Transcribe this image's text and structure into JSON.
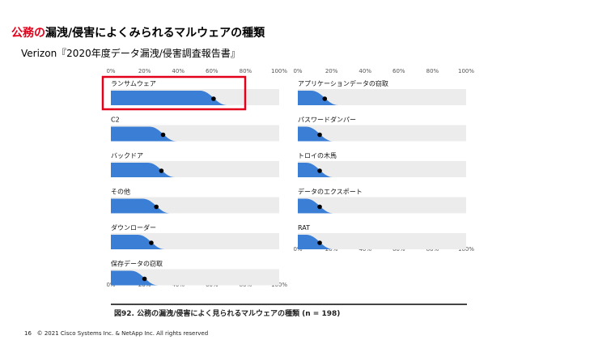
{
  "header": {
    "title_highlight": "公務の",
    "title_rest": "漏洩/侵害によくみられるマルウェアの種類",
    "subtitle": "Verizon『2020年度データ漏洩/侵害調査報告書』"
  },
  "footer": {
    "page_number": "16",
    "copyright": "© 2021 Cisco Systems Inc. & NetApp Inc. All rights reserved"
  },
  "chart_data": {
    "type": "area",
    "caption": "図92. 公務の漏洩/侵害によく見られるマルウェアの種類 (n = 198)",
    "x_tick_labels": [
      "0%",
      "20%",
      "40%",
      "60%",
      "80%",
      "100%"
    ],
    "xlim": [
      0,
      100
    ],
    "highlighted_panel": "ランサムウェア",
    "highlight_color": "#e2001a",
    "area_color": "#3a7fd5",
    "track_color": "#ececec",
    "panels": [
      {
        "label": "ランサムウェア",
        "value": 61,
        "column": "left"
      },
      {
        "label": "C2",
        "value": 31,
        "column": "left"
      },
      {
        "label": "バックドア",
        "value": 30,
        "column": "left"
      },
      {
        "label": "その他",
        "value": 27,
        "column": "left"
      },
      {
        "label": "ダウンローダー",
        "value": 24,
        "column": "left"
      },
      {
        "label": "保存データの窃取",
        "value": 20,
        "column": "left"
      },
      {
        "label": "アプリケーションデータの窃取",
        "value": 16,
        "column": "right"
      },
      {
        "label": "パスワードダンパー",
        "value": 13,
        "column": "right"
      },
      {
        "label": "トロイの木馬",
        "value": 13,
        "column": "right"
      },
      {
        "label": "データのエクスポート",
        "value": 13,
        "column": "right"
      },
      {
        "label": "RAT",
        "value": 13,
        "column": "right"
      }
    ]
  }
}
